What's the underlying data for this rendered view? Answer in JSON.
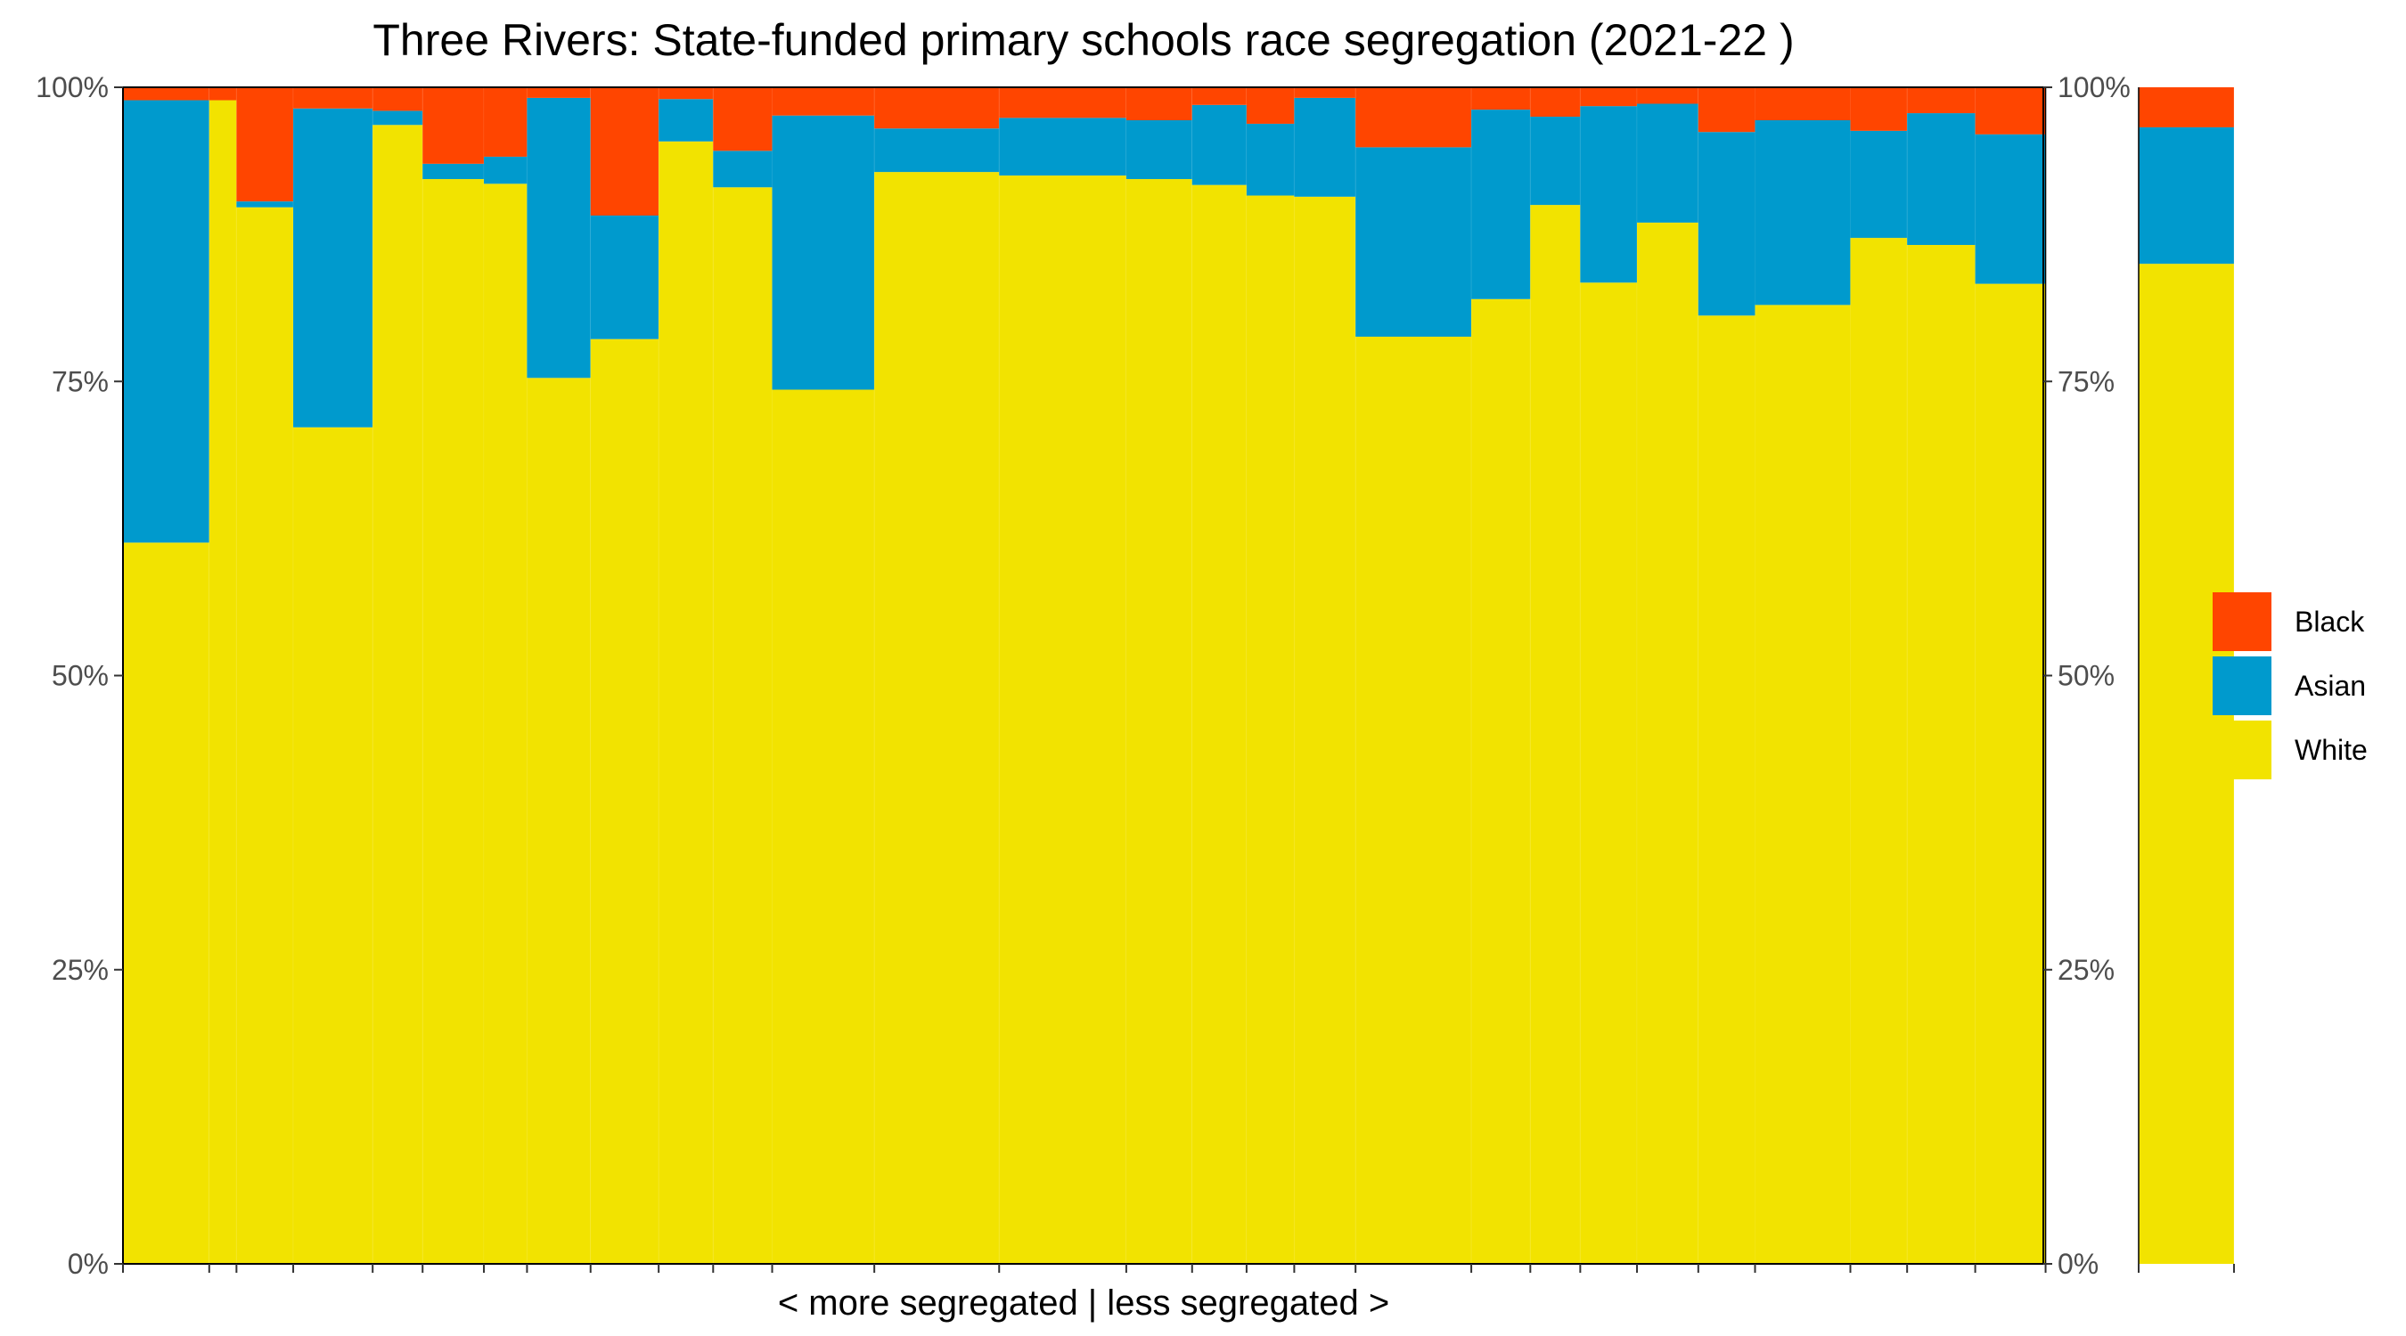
{
  "chart_data": {
    "type": "bar",
    "variant": "stacked-variable-width-proportional",
    "title": "Three Rivers: State-funded primary schools race segregation (2021-22 )",
    "xlabel": "< more segregated | less segregated >",
    "ylabel": "",
    "ylim": [
      0,
      1
    ],
    "y_ticks": [
      "0%",
      "25%",
      "50%",
      "75%",
      "100%"
    ],
    "y_axis_sides": "left-and-right",
    "grid": false,
    "legend": {
      "placement": "right",
      "entries": [
        {
          "name": "Black",
          "color": "#FF4500"
        },
        {
          "name": "Asian",
          "color": "#009ACD"
        },
        {
          "name": "White",
          "color": "#F2E300"
        }
      ]
    },
    "series_order_bottom_to_top": [
      "White",
      "Asian",
      "Black"
    ],
    "colors": {
      "White": "#F2E300",
      "Asian": "#009ACD",
      "Black": "#FF4500"
    },
    "x_range": [
      0,
      42.3
    ],
    "schools": [
      {
        "width": 1.9,
        "white": 0.613,
        "asian": 0.376,
        "black": 0.011
      },
      {
        "width": 0.6,
        "white": 0.989,
        "asian": 0.0,
        "black": 0.011
      },
      {
        "width": 1.25,
        "white": 0.898,
        "asian": 0.005,
        "black": 0.097
      },
      {
        "width": 1.75,
        "white": 0.711,
        "asian": 0.271,
        "black": 0.018
      },
      {
        "width": 1.1,
        "white": 0.968,
        "asian": 0.012,
        "black": 0.02
      },
      {
        "width": 1.35,
        "white": 0.922,
        "asian": 0.013,
        "black": 0.065
      },
      {
        "width": 0.95,
        "white": 0.918,
        "asian": 0.023,
        "black": 0.059
      },
      {
        "width": 1.4,
        "white": 0.753,
        "asian": 0.238,
        "black": 0.009
      },
      {
        "width": 1.5,
        "white": 0.786,
        "asian": 0.105,
        "black": 0.109
      },
      {
        "width": 1.2,
        "white": 0.954,
        "asian": 0.036,
        "black": 0.01
      },
      {
        "width": 1.3,
        "white": 0.915,
        "asian": 0.031,
        "black": 0.054
      },
      {
        "width": 2.25,
        "white": 0.743,
        "asian": 0.233,
        "black": 0.024
      },
      {
        "width": 2.75,
        "white": 0.928,
        "asian": 0.037,
        "black": 0.035
      },
      {
        "width": 2.8,
        "white": 0.925,
        "asian": 0.049,
        "black": 0.026
      },
      {
        "width": 1.45,
        "white": 0.922,
        "asian": 0.05,
        "black": 0.028
      },
      {
        "width": 1.2,
        "white": 0.917,
        "asian": 0.068,
        "black": 0.015
      },
      {
        "width": 1.05,
        "white": 0.908,
        "asian": 0.061,
        "black": 0.031
      },
      {
        "width": 1.35,
        "white": 0.907,
        "asian": 0.084,
        "black": 0.009
      },
      {
        "width": 2.55,
        "white": 0.788,
        "asian": 0.161,
        "black": 0.051
      },
      {
        "width": 1.3,
        "white": 0.82,
        "asian": 0.161,
        "black": 0.019
      },
      {
        "width": 1.1,
        "white": 0.9,
        "asian": 0.075,
        "black": 0.025
      },
      {
        "width": 1.25,
        "white": 0.834,
        "asian": 0.15,
        "black": 0.016
      },
      {
        "width": 1.35,
        "white": 0.885,
        "asian": 0.101,
        "black": 0.014
      },
      {
        "width": 1.25,
        "white": 0.806,
        "asian": 0.156,
        "black": 0.038
      },
      {
        "width": 2.1,
        "white": 0.815,
        "asian": 0.157,
        "black": 0.028
      },
      {
        "width": 1.25,
        "white": 0.872,
        "asian": 0.091,
        "black": 0.037
      },
      {
        "width": 1.5,
        "white": 0.866,
        "asian": 0.112,
        "black": 0.022
      },
      {
        "width": 1.55,
        "white": 0.833,
        "asian": 0.127,
        "black": 0.04
      }
    ],
    "gap_width": 2.05,
    "overall": {
      "width": 2.1,
      "white": 0.85,
      "asian": 0.116,
      "black": 0.034
    }
  }
}
